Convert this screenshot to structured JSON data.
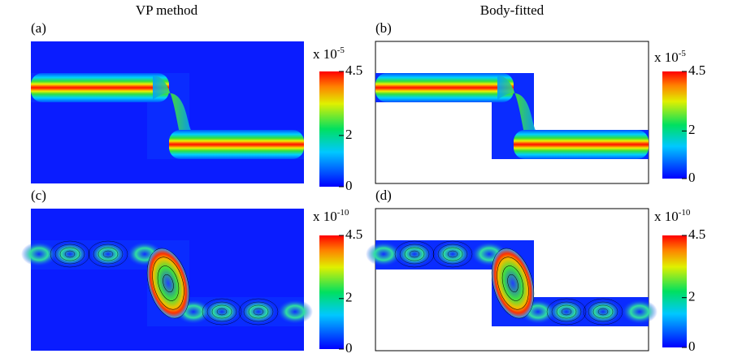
{
  "columns": [
    "VP method",
    "Body-fitted"
  ],
  "panels": [
    {
      "label": "(a)",
      "scale": {
        "base": "x 10",
        "exponent": "-5"
      },
      "colorbar": {
        "lim": [
          0,
          4.5
        ],
        "ticks": [
          4.5,
          2,
          0
        ]
      }
    },
    {
      "label": "(b)",
      "scale": {
        "base": "x 10",
        "exponent": "-5"
      },
      "colorbar": {
        "lim": [
          0,
          4.5
        ],
        "ticks": [
          4.5,
          2,
          0
        ]
      }
    },
    {
      "label": "(c)",
      "scale": {
        "base": "x 10",
        "exponent": "-10"
      },
      "colorbar": {
        "lim": [
          0,
          4.5
        ],
        "ticks": [
          4.5,
          2,
          0
        ]
      }
    },
    {
      "label": "(d)",
      "scale": {
        "base": "x 10",
        "exponent": "-10"
      },
      "colorbar": {
        "lim": [
          0,
          4.5
        ],
        "ticks": [
          4.5,
          2,
          0
        ]
      }
    }
  ]
}
